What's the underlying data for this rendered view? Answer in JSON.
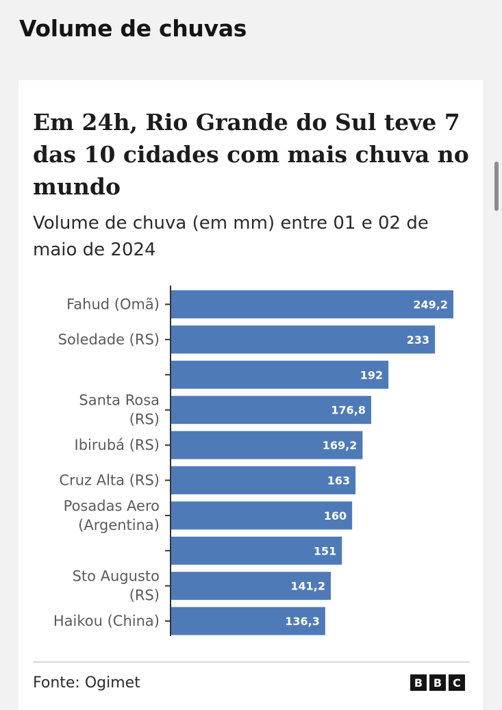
{
  "section": {
    "title": "Volume de chuvas"
  },
  "card": {
    "headline": "Em 24h, Rio Grande do Sul teve 7 das 10 cidades com mais chuva no mundo",
    "subtitle": "Volume de chuva (em mm) entre 01 e 02 de maio de 2024",
    "source": "Fonte: Ogimet",
    "logo_letters": [
      "B",
      "B",
      "C"
    ]
  },
  "chart_data": {
    "type": "bar",
    "orientation": "horizontal",
    "categories": [
      [
        "Fahud (Omã)"
      ],
      [
        "Soledade (RS)"
      ],
      [],
      [
        "Santa Rosa",
        "(RS)"
      ],
      [
        "Ibirubá (RS)"
      ],
      [
        "Cruz Alta (RS)"
      ],
      [
        "Posadas Aero",
        "(Argentina)"
      ],
      [],
      [
        "Sto Augusto",
        "(RS)"
      ],
      [
        "Haikou (China)"
      ]
    ],
    "values": [
      249.2,
      233,
      192,
      176.8,
      169.2,
      163,
      160,
      151,
      141.2,
      136.3
    ],
    "value_labels": [
      "249,2",
      "233",
      "192",
      "176,8",
      "169,2",
      "163",
      "160",
      "151",
      "141,2",
      "136,3"
    ],
    "xlim": [
      0,
      249.2
    ],
    "bar_color": "#4f7ab8",
    "grid": false,
    "legend": "none"
  }
}
